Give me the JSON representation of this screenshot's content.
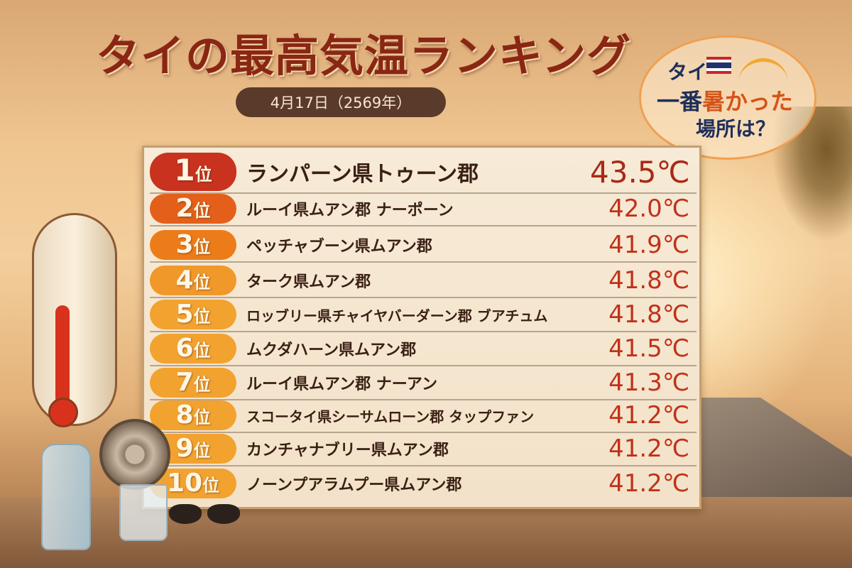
{
  "title": "タイの最高気温ランキング",
  "date": "4月17日（2569年）",
  "bubble": {
    "line1": "タイ",
    "line2_a": "一番",
    "line2_b": "暑かった",
    "line3": "場所は？"
  },
  "rank_suffix": "位",
  "colors": {
    "title": "#8a2614",
    "temp": "#c0321a",
    "rank1": "#c8321e",
    "rank2": "#e4601a",
    "rank3": "#ec7c1a",
    "rank4": "#f0982a",
    "rank_other": "#f2a22e"
  },
  "ranking": [
    {
      "rank": "1",
      "place": "ランパーン県トゥーン郡",
      "temp": "43.5℃"
    },
    {
      "rank": "2",
      "place": "ルーイ県ムアン郡 ナーポーン",
      "temp": "42.0℃"
    },
    {
      "rank": "3",
      "place": "ペッチャブーン県ムアン郡",
      "temp": "41.9℃"
    },
    {
      "rank": "4",
      "place": "ターク県ムアン郡",
      "temp": "41.8℃"
    },
    {
      "rank": "5",
      "place": "ロッブリー県チャイヤバーダーン郡 ブアチュム",
      "temp": "41.8℃"
    },
    {
      "rank": "6",
      "place": "ムクダハーン県ムアン郡",
      "temp": "41.5℃"
    },
    {
      "rank": "7",
      "place": "ルーイ県ムアン郡 ナーアン",
      "temp": "41.3℃"
    },
    {
      "rank": "8",
      "place": "スコータイ県シーサムローン郡 タップファン",
      "temp": "41.2℃"
    },
    {
      "rank": "9",
      "place": "カンチャナブリー県ムアン郡",
      "temp": "41.2℃"
    },
    {
      "rank": "10",
      "place": "ノーンプアラムプー県ムアン郡",
      "temp": "41.2℃"
    }
  ]
}
